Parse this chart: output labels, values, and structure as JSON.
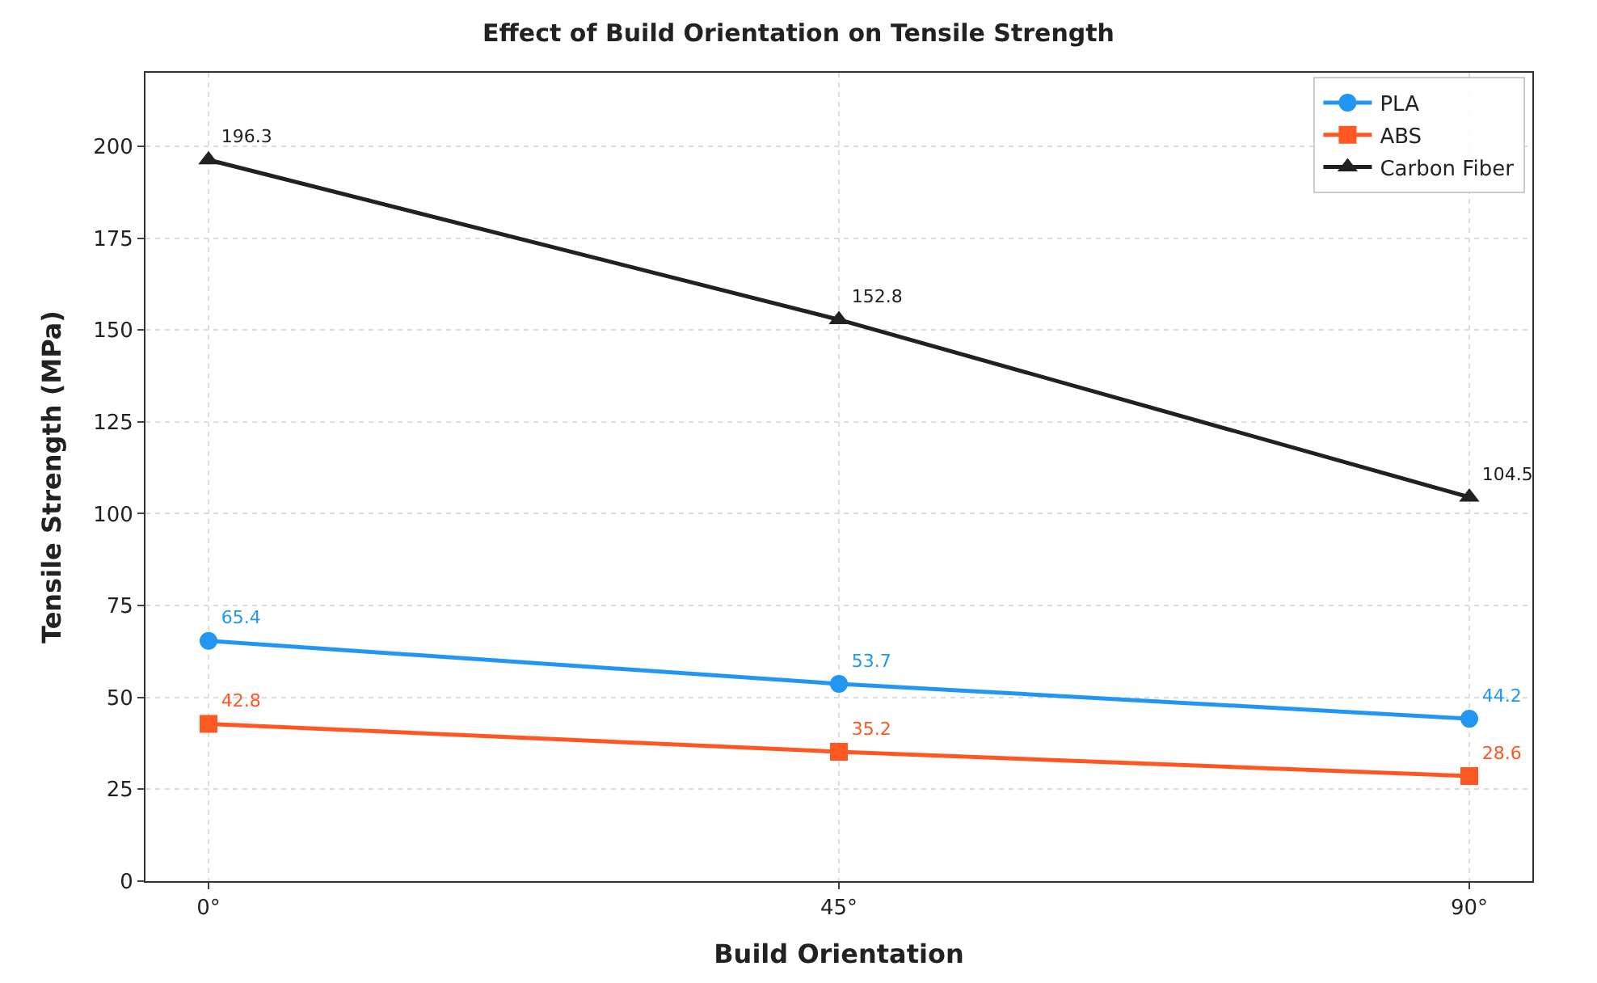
{
  "chart_data": {
    "type": "line",
    "title": "Effect of Build Orientation on Tensile Strength",
    "xlabel": "Build Orientation",
    "ylabel": "Tensile Strength (MPa)",
    "categories": [
      "0°",
      "45°",
      "90°"
    ],
    "series": [
      {
        "name": "PLA",
        "color": "#2196f3",
        "marker": "circle",
        "values": [
          65.4,
          53.7,
          44.2
        ]
      },
      {
        "name": "ABS",
        "color": "#ff5722",
        "marker": "square",
        "values": [
          42.8,
          35.2,
          28.6
        ]
      },
      {
        "name": "Carbon Fiber",
        "color": "#212121",
        "marker": "triangle",
        "values": [
          196.3,
          152.8,
          104.5
        ]
      }
    ],
    "ylim": [
      0,
      220
    ],
    "yticks": [
      0,
      25,
      50,
      75,
      100,
      125,
      150,
      175,
      200
    ],
    "grid": true,
    "legend": "top right",
    "data_labels": true,
    "line_style": "solid"
  }
}
